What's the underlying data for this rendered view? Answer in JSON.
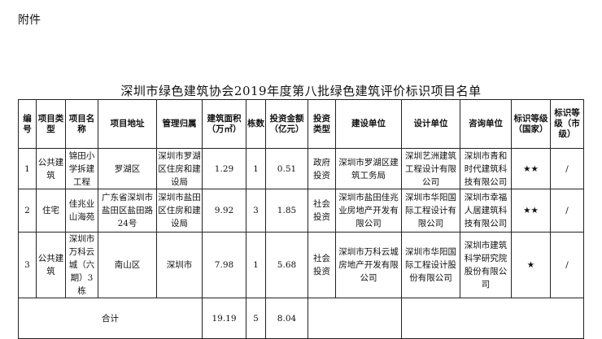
{
  "attachment_label": "附件",
  "title": "深圳市绿色建筑协会2019年度第八批绿色建筑评价标识项目名单",
  "headers": [
    "编号",
    "项目类型",
    "项目名称",
    "项目地址",
    "管理归属",
    "建筑面积（万㎡）",
    "栋数",
    "投资金额（亿元）",
    "投资类型",
    "建设单位",
    "设计单位",
    "咨询单位",
    "标识等级（国家）",
    "标识等级（市级）"
  ],
  "rows": [
    [
      "1",
      "公共建筑",
      "锦田小学拆建工程",
      "罗湖区",
      "深圳市罗湖区住房和建设局",
      "1.29",
      "1",
      "0.51",
      "政府投资",
      "深圳市罗湖区建筑工务局",
      "深圳艺洲建筑工程设计有限公司",
      "深圳市青和时代建筑科技有限公司",
      "★★",
      "/"
    ],
    [
      "2",
      "住宅",
      "佳兆业山海苑",
      "广东省深圳市盐田区盐田路24号",
      "深圳市盐田区住房和建设局",
      "9.92",
      "3",
      "1.85",
      "社会投资",
      "深圳市盐田佳兆业房地产开发有限公司",
      "深圳市华阳国际工程设计有限公司",
      "深圳市幸福人居建筑科技有限公司",
      "★★",
      "/"
    ],
    [
      "3",
      "公共建筑",
      "深圳市万科云城（六期）3栋",
      "南山区",
      "深圳市",
      "7.98",
      "1",
      "5.68",
      "社会投资",
      "深圳市万科云城房地产开发有限公司",
      "深圳市华阳国际工程设计股份有限公司",
      "深圳市建筑科学研究院股份有限公司",
      "★",
      "/"
    ]
  ],
  "total": {
    "label": "合计",
    "area": "19.19",
    "count": "5",
    "investment": "8.04"
  }
}
